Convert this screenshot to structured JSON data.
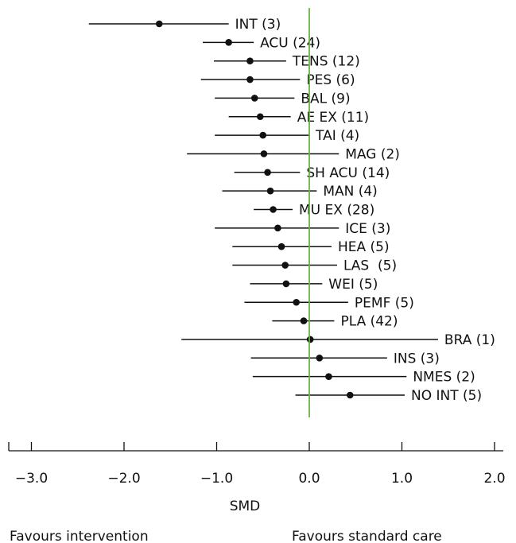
{
  "chart_data": {
    "type": "forest",
    "xlabel": "SMD",
    "favours_left": "Favours intervention",
    "favours_right": "Favours standard care",
    "xlim": [
      -3.2,
      2.2
    ],
    "xticks": [
      -3.0,
      -2.0,
      -1.0,
      0.0,
      1.0,
      2.0
    ],
    "xtick_labels": [
      "−3.0",
      "−2.0",
      "−1.0",
      "0.0",
      "1.0",
      "2.0"
    ],
    "reference_line": 0.0,
    "reference_color": "#6ab04c",
    "studies": [
      {
        "label": "INT (3)",
        "est": -1.62,
        "lo": -2.38,
        "hi": -0.87
      },
      {
        "label": "ACU (24)",
        "est": -0.87,
        "lo": -1.15,
        "hi": -0.6
      },
      {
        "label": "TENS (12)",
        "est": -0.64,
        "lo": -1.03,
        "hi": -0.25
      },
      {
        "label": "PES (6)",
        "est": -0.64,
        "lo": -1.17,
        "hi": -0.1
      },
      {
        "label": "BAL (9)",
        "est": -0.59,
        "lo": -1.02,
        "hi": -0.16
      },
      {
        "label": "AE EX (11)",
        "est": -0.53,
        "lo": -0.87,
        "hi": -0.2
      },
      {
        "label": "TAI (4)",
        "est": -0.5,
        "lo": -1.02,
        "hi": 0.0
      },
      {
        "label": "MAG (2)",
        "est": -0.49,
        "lo": -1.32,
        "hi": 0.32
      },
      {
        "label": "SH ACU (14)",
        "est": -0.45,
        "lo": -0.81,
        "hi": -0.1
      },
      {
        "label": "MAN (4)",
        "est": -0.42,
        "lo": -0.94,
        "hi": 0.08
      },
      {
        "label": "MU EX (28)",
        "est": -0.39,
        "lo": -0.6,
        "hi": -0.18
      },
      {
        "label": "ICE (3)",
        "est": -0.34,
        "lo": -1.02,
        "hi": 0.32
      },
      {
        "label": "HEA (5)",
        "est": -0.3,
        "lo": -0.83,
        "hi": 0.24
      },
      {
        "label": "LAS  (5)",
        "est": -0.26,
        "lo": -0.83,
        "hi": 0.3
      },
      {
        "label": "WEI (5)",
        "est": -0.25,
        "lo": -0.64,
        "hi": 0.14
      },
      {
        "label": "PEMF (5)",
        "est": -0.14,
        "lo": -0.7,
        "hi": 0.42
      },
      {
        "label": "PLA (42)",
        "est": -0.06,
        "lo": -0.4,
        "hi": 0.27
      },
      {
        "label": "BRA (1)",
        "est": 0.01,
        "lo": -1.38,
        "hi": 1.39
      },
      {
        "label": "INS (3)",
        "est": 0.11,
        "lo": -0.63,
        "hi": 0.84
      },
      {
        "label": "NMES (2)",
        "est": 0.21,
        "lo": -0.61,
        "hi": 1.05
      },
      {
        "label": "NO INT (5)",
        "est": 0.44,
        "lo": -0.15,
        "hi": 1.03
      }
    ]
  }
}
